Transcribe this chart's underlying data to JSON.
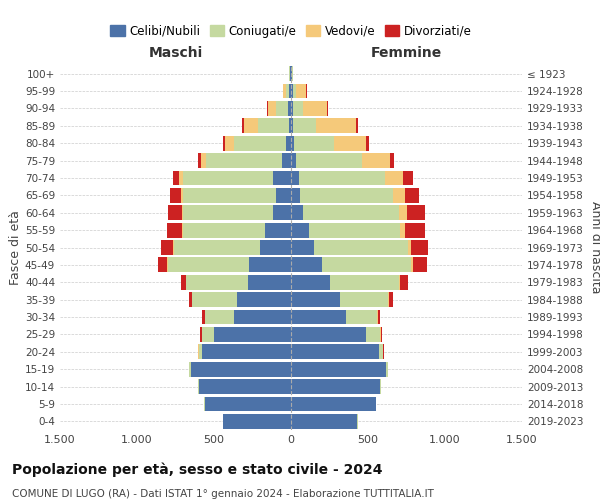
{
  "age_groups": [
    "0-4",
    "5-9",
    "10-14",
    "15-19",
    "20-24",
    "25-29",
    "30-34",
    "35-39",
    "40-44",
    "45-49",
    "50-54",
    "55-59",
    "60-64",
    "65-69",
    "70-74",
    "75-79",
    "80-84",
    "85-89",
    "90-94",
    "95-99",
    "100+"
  ],
  "birth_years": [
    "2019-2023",
    "2014-2018",
    "2009-2013",
    "2004-2008",
    "1999-2003",
    "1994-1998",
    "1989-1993",
    "1984-1988",
    "1979-1983",
    "1974-1978",
    "1969-1973",
    "1964-1968",
    "1959-1963",
    "1954-1958",
    "1949-1953",
    "1944-1948",
    "1939-1943",
    "1934-1938",
    "1929-1933",
    "1924-1928",
    "≤ 1923"
  ],
  "male": {
    "celibi": [
      440,
      560,
      600,
      650,
      580,
      500,
      370,
      350,
      280,
      270,
      200,
      170,
      120,
      100,
      120,
      60,
      30,
      15,
      20,
      10,
      5
    ],
    "coniugati": [
      2,
      5,
      5,
      10,
      20,
      80,
      190,
      290,
      400,
      530,
      560,
      530,
      580,
      600,
      580,
      490,
      340,
      200,
      80,
      20,
      5
    ],
    "vedovi": [
      0,
      0,
      0,
      1,
      1,
      1,
      1,
      2,
      2,
      3,
      5,
      5,
      8,
      15,
      25,
      35,
      60,
      90,
      50,
      20,
      2
    ],
    "divorziati": [
      0,
      0,
      1,
      2,
      5,
      10,
      15,
      20,
      30,
      60,
      80,
      100,
      90,
      70,
      40,
      20,
      10,
      10,
      5,
      2,
      1
    ]
  },
  "female": {
    "nubili": [
      430,
      550,
      580,
      620,
      570,
      490,
      360,
      320,
      250,
      200,
      150,
      120,
      80,
      60,
      50,
      30,
      20,
      10,
      15,
      10,
      5
    ],
    "coniugate": [
      2,
      5,
      5,
      10,
      25,
      90,
      200,
      310,
      450,
      580,
      610,
      590,
      620,
      600,
      560,
      430,
      260,
      150,
      60,
      20,
      5
    ],
    "vedove": [
      0,
      0,
      0,
      1,
      2,
      2,
      3,
      5,
      8,
      15,
      20,
      30,
      50,
      80,
      120,
      180,
      210,
      260,
      160,
      70,
      5
    ],
    "divorziate": [
      0,
      0,
      1,
      2,
      5,
      10,
      15,
      25,
      50,
      90,
      110,
      130,
      120,
      90,
      60,
      30,
      15,
      12,
      8,
      3,
      1
    ]
  },
  "colors": {
    "celibi": "#4c72a8",
    "coniugati": "#c5d9a0",
    "vedovi": "#f5c97a",
    "divorziati": "#cc2222"
  },
  "xlim": 1500,
  "title_main": "Popolazione per età, sesso e stato civile - 2024",
  "title_sub": "COMUNE DI LUGO (RA) - Dati ISTAT 1° gennaio 2024 - Elaborazione TUTTITALIA.IT",
  "xlabel_left": "Maschi",
  "xlabel_right": "Femmine",
  "ylabel_left": "Fasce di età",
  "ylabel_right": "Anni di nascita",
  "legend_labels": [
    "Celibi/Nubili",
    "Coniugati/e",
    "Vedovi/e",
    "Divorziati/e"
  ],
  "background_color": "#ffffff",
  "grid_color": "#cccccc"
}
